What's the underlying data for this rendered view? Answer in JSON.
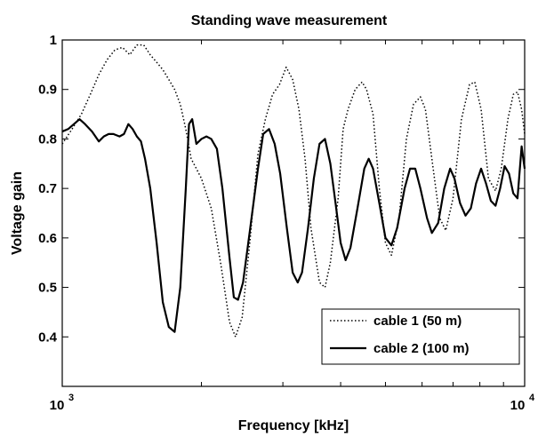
{
  "chart_data": {
    "type": "line",
    "title": "Standing wave measurement",
    "xlabel": "Frequency [kHz]",
    "ylabel": "Voltage gain",
    "xscale": "log",
    "xlim": [
      1000,
      10000
    ],
    "ylim": [
      0.3,
      1.0
    ],
    "y_ticks": [
      "0.4",
      "0.5",
      "0.6",
      "0.7",
      "0.8",
      "0.9",
      "1"
    ],
    "x_ticks": [
      {
        "base": "10",
        "exp": "3"
      },
      {
        "base": "10",
        "exp": "4"
      }
    ],
    "legend_placement": "bottom-right",
    "grid": false,
    "series": [
      {
        "name": "cable 1 (50 m)",
        "style": "dotted",
        "color": "#000000",
        "points": [
          [
            1000,
            0.79
          ],
          [
            1050,
            0.82
          ],
          [
            1100,
            0.85
          ],
          [
            1150,
            0.89
          ],
          [
            1200,
            0.93
          ],
          [
            1250,
            0.96
          ],
          [
            1300,
            0.98
          ],
          [
            1350,
            0.985
          ],
          [
            1400,
            0.97
          ],
          [
            1450,
            0.99
          ],
          [
            1500,
            0.99
          ],
          [
            1550,
            0.97
          ],
          [
            1600,
            0.955
          ],
          [
            1650,
            0.94
          ],
          [
            1700,
            0.92
          ],
          [
            1750,
            0.9
          ],
          [
            1800,
            0.87
          ],
          [
            1850,
            0.82
          ],
          [
            1900,
            0.76
          ],
          [
            1950,
            0.74
          ],
          [
            2000,
            0.72
          ],
          [
            2100,
            0.66
          ],
          [
            2200,
            0.55
          ],
          [
            2300,
            0.43
          ],
          [
            2370,
            0.4
          ],
          [
            2450,
            0.44
          ],
          [
            2550,
            0.6
          ],
          [
            2650,
            0.77
          ],
          [
            2750,
            0.84
          ],
          [
            2850,
            0.89
          ],
          [
            2950,
            0.91
          ],
          [
            3050,
            0.945
          ],
          [
            3150,
            0.92
          ],
          [
            3250,
            0.86
          ],
          [
            3350,
            0.76
          ],
          [
            3450,
            0.62
          ],
          [
            3600,
            0.51
          ],
          [
            3700,
            0.5
          ],
          [
            3800,
            0.55
          ],
          [
            3950,
            0.68
          ],
          [
            4050,
            0.82
          ],
          [
            4150,
            0.86
          ],
          [
            4300,
            0.9
          ],
          [
            4450,
            0.915
          ],
          [
            4550,
            0.9
          ],
          [
            4700,
            0.85
          ],
          [
            4850,
            0.7
          ],
          [
            5000,
            0.59
          ],
          [
            5150,
            0.565
          ],
          [
            5350,
            0.64
          ],
          [
            5550,
            0.8
          ],
          [
            5750,
            0.87
          ],
          [
            5950,
            0.885
          ],
          [
            6100,
            0.86
          ],
          [
            6300,
            0.76
          ],
          [
            6550,
            0.64
          ],
          [
            6750,
            0.615
          ],
          [
            7000,
            0.68
          ],
          [
            7300,
            0.84
          ],
          [
            7600,
            0.91
          ],
          [
            7800,
            0.915
          ],
          [
            8050,
            0.86
          ],
          [
            8350,
            0.72
          ],
          [
            8650,
            0.695
          ],
          [
            8900,
            0.74
          ],
          [
            9200,
            0.84
          ],
          [
            9450,
            0.89
          ],
          [
            9650,
            0.895
          ],
          [
            9850,
            0.86
          ],
          [
            10000,
            0.81
          ]
        ]
      },
      {
        "name": "cable 2 (100 m)",
        "style": "solid",
        "color": "#000000",
        "points": [
          [
            1000,
            0.815
          ],
          [
            1030,
            0.82
          ],
          [
            1060,
            0.83
          ],
          [
            1090,
            0.84
          ],
          [
            1120,
            0.83
          ],
          [
            1160,
            0.815
          ],
          [
            1200,
            0.795
          ],
          [
            1230,
            0.805
          ],
          [
            1260,
            0.81
          ],
          [
            1290,
            0.81
          ],
          [
            1330,
            0.805
          ],
          [
            1360,
            0.81
          ],
          [
            1390,
            0.83
          ],
          [
            1420,
            0.82
          ],
          [
            1450,
            0.805
          ],
          [
            1480,
            0.795
          ],
          [
            1510,
            0.76
          ],
          [
            1550,
            0.7
          ],
          [
            1600,
            0.59
          ],
          [
            1650,
            0.47
          ],
          [
            1700,
            0.42
          ],
          [
            1750,
            0.41
          ],
          [
            1800,
            0.5
          ],
          [
            1850,
            0.7
          ],
          [
            1880,
            0.83
          ],
          [
            1910,
            0.84
          ],
          [
            1950,
            0.79
          ],
          [
            2000,
            0.8
          ],
          [
            2050,
            0.805
          ],
          [
            2100,
            0.8
          ],
          [
            2160,
            0.78
          ],
          [
            2220,
            0.7
          ],
          [
            2300,
            0.56
          ],
          [
            2350,
            0.48
          ],
          [
            2400,
            0.475
          ],
          [
            2460,
            0.51
          ],
          [
            2550,
            0.62
          ],
          [
            2650,
            0.74
          ],
          [
            2720,
            0.81
          ],
          [
            2800,
            0.82
          ],
          [
            2880,
            0.79
          ],
          [
            2960,
            0.73
          ],
          [
            3060,
            0.62
          ],
          [
            3150,
            0.53
          ],
          [
            3230,
            0.51
          ],
          [
            3300,
            0.53
          ],
          [
            3400,
            0.62
          ],
          [
            3500,
            0.72
          ],
          [
            3600,
            0.79
          ],
          [
            3700,
            0.8
          ],
          [
            3800,
            0.75
          ],
          [
            3900,
            0.67
          ],
          [
            4000,
            0.59
          ],
          [
            4100,
            0.555
          ],
          [
            4200,
            0.58
          ],
          [
            4350,
            0.66
          ],
          [
            4500,
            0.74
          ],
          [
            4600,
            0.76
          ],
          [
            4700,
            0.74
          ],
          [
            4850,
            0.67
          ],
          [
            5000,
            0.6
          ],
          [
            5150,
            0.585
          ],
          [
            5300,
            0.62
          ],
          [
            5500,
            0.7
          ],
          [
            5650,
            0.74
          ],
          [
            5800,
            0.74
          ],
          [
            5950,
            0.7
          ],
          [
            6150,
            0.64
          ],
          [
            6300,
            0.61
          ],
          [
            6500,
            0.63
          ],
          [
            6700,
            0.7
          ],
          [
            6900,
            0.74
          ],
          [
            7050,
            0.72
          ],
          [
            7250,
            0.67
          ],
          [
            7450,
            0.645
          ],
          [
            7650,
            0.66
          ],
          [
            7850,
            0.71
          ],
          [
            8050,
            0.74
          ],
          [
            8250,
            0.71
          ],
          [
            8450,
            0.675
          ],
          [
            8650,
            0.665
          ],
          [
            8850,
            0.7
          ],
          [
            9050,
            0.745
          ],
          [
            9250,
            0.73
          ],
          [
            9450,
            0.69
          ],
          [
            9650,
            0.68
          ],
          [
            9850,
            0.785
          ],
          [
            10000,
            0.74
          ]
        ]
      }
    ]
  }
}
